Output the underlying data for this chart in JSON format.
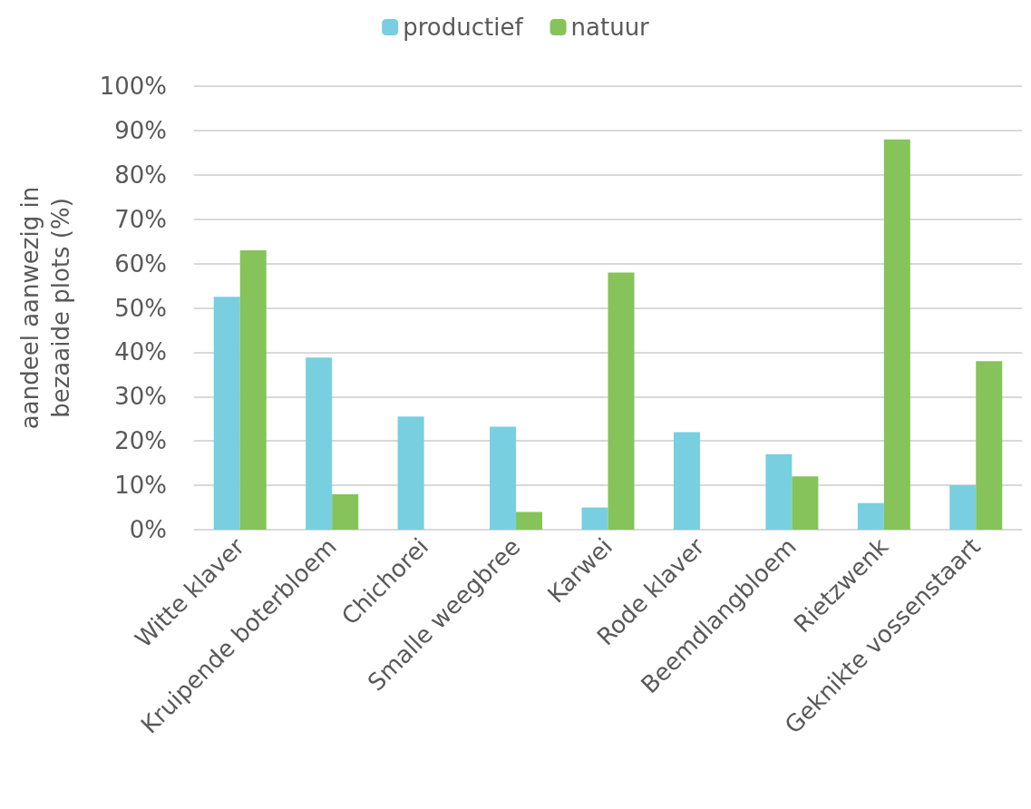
{
  "chart_data": {
    "type": "bar",
    "ylabel": "aandeel aanwezig in\nbezaaide plots (%)",
    "categories": [
      "Witte klaver",
      "Kruipende boterbloem",
      "Chichorei",
      "Smalle weegbree",
      "Karwei",
      "Rode klaver",
      "Beemdlangbloem",
      "Rietzwenk",
      "Geknikte vossenstaart"
    ],
    "series": [
      {
        "name": "productief",
        "color": "#78cfdf",
        "values": [
          52.5,
          38.8,
          25.5,
          23.2,
          5,
          22,
          17,
          6,
          10
        ]
      },
      {
        "name": "natuur",
        "color": "#86c35a",
        "values": [
          63,
          8,
          0,
          4,
          58,
          0,
          12,
          88,
          38
        ]
      }
    ],
    "ylim": [
      0,
      100
    ],
    "yticks": [
      {
        "value": 0,
        "label": "0%"
      },
      {
        "value": 10,
        "label": "10%"
      },
      {
        "value": 20,
        "label": "20%"
      },
      {
        "value": 30,
        "label": "30%"
      },
      {
        "value": 40,
        "label": "40%"
      },
      {
        "value": 50,
        "label": "50%"
      },
      {
        "value": 60,
        "label": "60%"
      },
      {
        "value": 70,
        "label": "70%"
      },
      {
        "value": 80,
        "label": "80%"
      },
      {
        "value": 90,
        "label": "90%"
      },
      {
        "value": 100,
        "label": "100%"
      }
    ],
    "grid": "y",
    "legend": "top"
  }
}
